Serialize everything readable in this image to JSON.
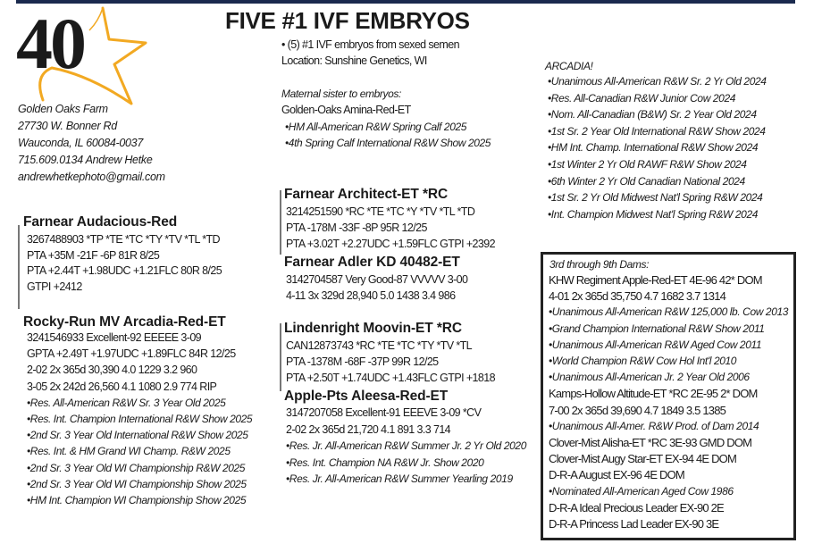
{
  "logo": {
    "number": "40",
    "star_color": "#f2a922"
  },
  "farm": {
    "name": "Golden Oaks Farm",
    "street": "27730 W. Bonner Rd",
    "city": "Wauconda, IL  60084-0037",
    "phone": "715.609.0134 Andrew Hetke",
    "email": "andrewhetkephoto@gmail.com"
  },
  "title": "FIVE #1 IVF EMBRYOS",
  "intro": [
    "• (5) #1 IVF embryos from sexed semen",
    "Location:  Sunshine Genetics, WI"
  ],
  "maternal": {
    "label": "Maternal sister to embryos:",
    "name": "Golden-Oaks Amina-Red-ET",
    "awards": [
      "•HM All-American R&W Spring Calf 2025",
      "•4th Spring Calf International R&W Show 2025"
    ]
  },
  "arcadia": {
    "label": "ARCADIA!",
    "awards": [
      "•Unanimous All-American R&W Sr. 2 Yr Old 2024",
      "•Res. All-Canadian R&W Junior Cow 2024",
      "•Nom. All-Canadian (B&W) Sr. 2 Year Old 2024",
      "•1st Sr. 2 Year Old International R&W Show 2024",
      "•HM Int. Champ. International R&W Show 2024",
      "•1st Winter 2 Yr Old RAWF R&W Show 2024",
      "•6th Winter 2 Yr Old Canadian National 2024",
      "•1st Sr. 2 Yr Old Midwest Nat'l Spring R&W 2024",
      "•Int. Champion Midwest Nat'l Spring R&W 2024"
    ]
  },
  "sire1": {
    "name": "Farnear Audacious-Red",
    "lines": [
      "3267488903    *TP *TE *TC *TY *TV *TL *TD",
      "PTA +35M -21F -6P 81R 8/25",
      "PTA +2.44T +1.98UDC +1.21FLC 80R 8/25",
      "GTPI +2412"
    ]
  },
  "dam1": {
    "name": "Rocky-Run MV Arcadia-Red-ET",
    "lines": [
      "3241546933    Excellent-92 EEEEE  3-09",
      "GPTA +2.49T +1.97UDC +1.89FLC 84R 12/25",
      "2-02  2x  365d  30,390  4.0  1229  3.2  960",
      "3-05  2x  242d  26,560  4.1  1080  2.9  774 RIP"
    ],
    "awards": [
      "•Res. All-American R&W Sr. 3 Year Old 2025",
      "•Res. Int. Champion International R&W Show 2025",
      "•2nd Sr. 3 Year Old International R&W Show 2025",
      "•Res. Int. & HM Grand WI Champ. R&W 2025",
      "•2nd Sr. 3 Year Old WI Championship R&W 2025",
      "•2nd Sr. 3 Year Old WI Championship Show 2025",
      "•HM Int. Champion WI Championship Show 2025"
    ]
  },
  "sire2": {
    "name": "Farnear Architect-ET *RC",
    "lines": [
      "3214251590  *RC *TE *TC *Y *TV *TL *TD",
      "PTA -178M -33F -8P 95R 12/25",
      "PTA +3.02T +2.27UDC +1.59FLC GTPI +2392"
    ]
  },
  "dam2": {
    "name": "Farnear Adler KD 40482-ET",
    "lines": [
      "3142704587    Very Good-87 VVVVV  3-00",
      "4-11  3x  329d  28,940  5.0  1438  3.4  986"
    ]
  },
  "sire3": {
    "name": "Lindenright Moovin-ET *RC",
    "lines": [
      "CAN12873743   *RC *TE *TC *TY *TV *TL",
      "PTA -1378M -68F -37P 99R 12/25",
      "PTA +2.50T +1.74UDC +1.43FLC GTPI +1818"
    ]
  },
  "dam3": {
    "name": "Apple-Pts Aleesa-Red-ET",
    "lines": [
      "3147207058    Excellent-91 EEEVE  3-09   *CV",
      "2-02  2x  365d  21,720  4.1  891  3.3  714"
    ],
    "awards": [
      "•Res. Jr. All-American R&W Summer Jr. 2 Yr Old 2020",
      "•Res. Int. Champion NA R&W Jr. Show 2020",
      "•Res. Jr. All-American R&W Summer Yearling 2019"
    ]
  },
  "dams_box": {
    "label": "3rd through 9th Dams:",
    "rows": [
      {
        "text": "KHW Regiment Apple-Red-ET  4E-96 42* DOM",
        "style": "t"
      },
      {
        "text": " 4-01  2x  365d  35,750  4.7  1682  3.7  1314",
        "style": "t"
      },
      {
        "text": " •Unanimous All-American R&W 125,000 lb. Cow 2013",
        "style": "i"
      },
      {
        "text": " •Grand Champion International R&W Show 2011",
        "style": "i"
      },
      {
        "text": " •Unanimous All-American R&W Aged Cow 2011",
        "style": "i"
      },
      {
        "text": " •World Champion R&W Cow Hol Int'l 2010",
        "style": "i"
      },
      {
        "text": " •Unanimous All-American Jr. 2 Year Old 2006",
        "style": "i"
      },
      {
        "text": "Kamps-Hollow Altitude-ET *RC 2E-95 2* DOM",
        "style": "t"
      },
      {
        "text": " 7-00  2x  365d  39,690  4.7  1849  3.5  1385",
        "style": "t"
      },
      {
        "text": " •Unanimous All-Amer. R&W Prod. of Dam 2014",
        "style": "i"
      },
      {
        "text": "Clover-Mist Alisha-ET *RC 3E-93 GMD DOM",
        "style": "t"
      },
      {
        "text": "Clover-Mist Augy Star-ET  EX-94 4E DOM",
        "style": "t"
      },
      {
        "text": "D-R-A August  EX-96 4E DOM",
        "style": "t"
      },
      {
        "text": " •Nominated All-American Aged Cow 1986",
        "style": "i"
      },
      {
        "text": "D-R-A Ideal Precious Leader  EX-90 2E",
        "style": "t"
      },
      {
        "text": "D-R-A Princess Lad Leader  EX-90 3E",
        "style": "t"
      }
    ]
  },
  "colors": {
    "top_rule": "#1b2a4e",
    "star": "#f2a922"
  }
}
